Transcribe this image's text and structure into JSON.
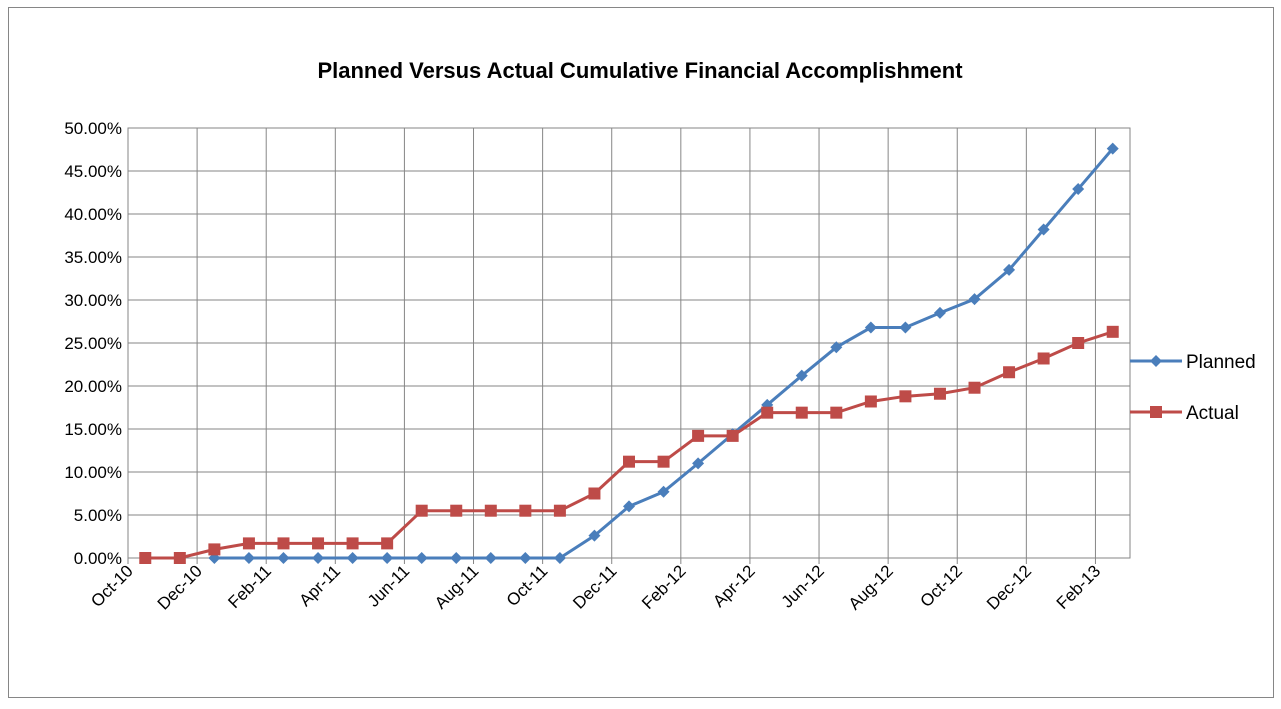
{
  "chart_data": {
    "type": "line",
    "title": "Planned Versus Actual Cumulative Financial Accomplishment",
    "categories": [
      "Oct-10",
      null,
      "Dec-10",
      null,
      "Feb-11",
      null,
      "Apr-11",
      null,
      "Jun-11",
      null,
      "Aug-11",
      null,
      "Oct-11",
      null,
      "Dec-11",
      null,
      "Feb-12",
      null,
      "Apr-12",
      null,
      "Jun-12",
      null,
      "Aug-12",
      null,
      "Oct-12",
      null,
      "Dec-12",
      null,
      "Feb-13"
    ],
    "series": [
      {
        "name": "Planned",
        "color": "#4a7ebb",
        "marker": "diamond",
        "values": [
          null,
          null,
          0,
          0,
          0,
          0,
          0,
          0,
          0,
          0,
          0,
          0,
          0,
          2.6,
          6.0,
          7.7,
          11.0,
          14.4,
          17.8,
          21.2,
          24.5,
          26.8,
          26.8,
          28.5,
          30.1,
          33.5,
          38.2,
          42.9,
          47.6
        ]
      },
      {
        "name": "Actual",
        "color": "#be4b48",
        "marker": "square",
        "values": [
          0,
          0,
          1.0,
          1.7,
          1.7,
          1.7,
          1.7,
          1.7,
          5.5,
          5.5,
          5.5,
          5.5,
          5.5,
          7.5,
          11.2,
          11.2,
          14.2,
          14.2,
          16.9,
          16.9,
          16.9,
          18.2,
          18.8,
          19.1,
          19.8,
          21.6,
          23.2,
          25.0,
          26.3
        ]
      }
    ],
    "ylim": [
      0,
      50
    ],
    "yticks": [
      {
        "value": 0,
        "label": "0.00%"
      },
      {
        "value": 5,
        "label": "5.00%"
      },
      {
        "value": 10,
        "label": "10.00%"
      },
      {
        "value": 15,
        "label": "15.00%"
      },
      {
        "value": 20,
        "label": "20.00%"
      },
      {
        "value": 25,
        "label": "25.00%"
      },
      {
        "value": 30,
        "label": "30.00%"
      },
      {
        "value": 35,
        "label": "35.00%"
      },
      {
        "value": 40,
        "label": "40.00%"
      },
      {
        "value": 45,
        "label": "45.00%"
      },
      {
        "value": 50,
        "label": "50.00%"
      }
    ],
    "grid": true,
    "legend": "right"
  }
}
